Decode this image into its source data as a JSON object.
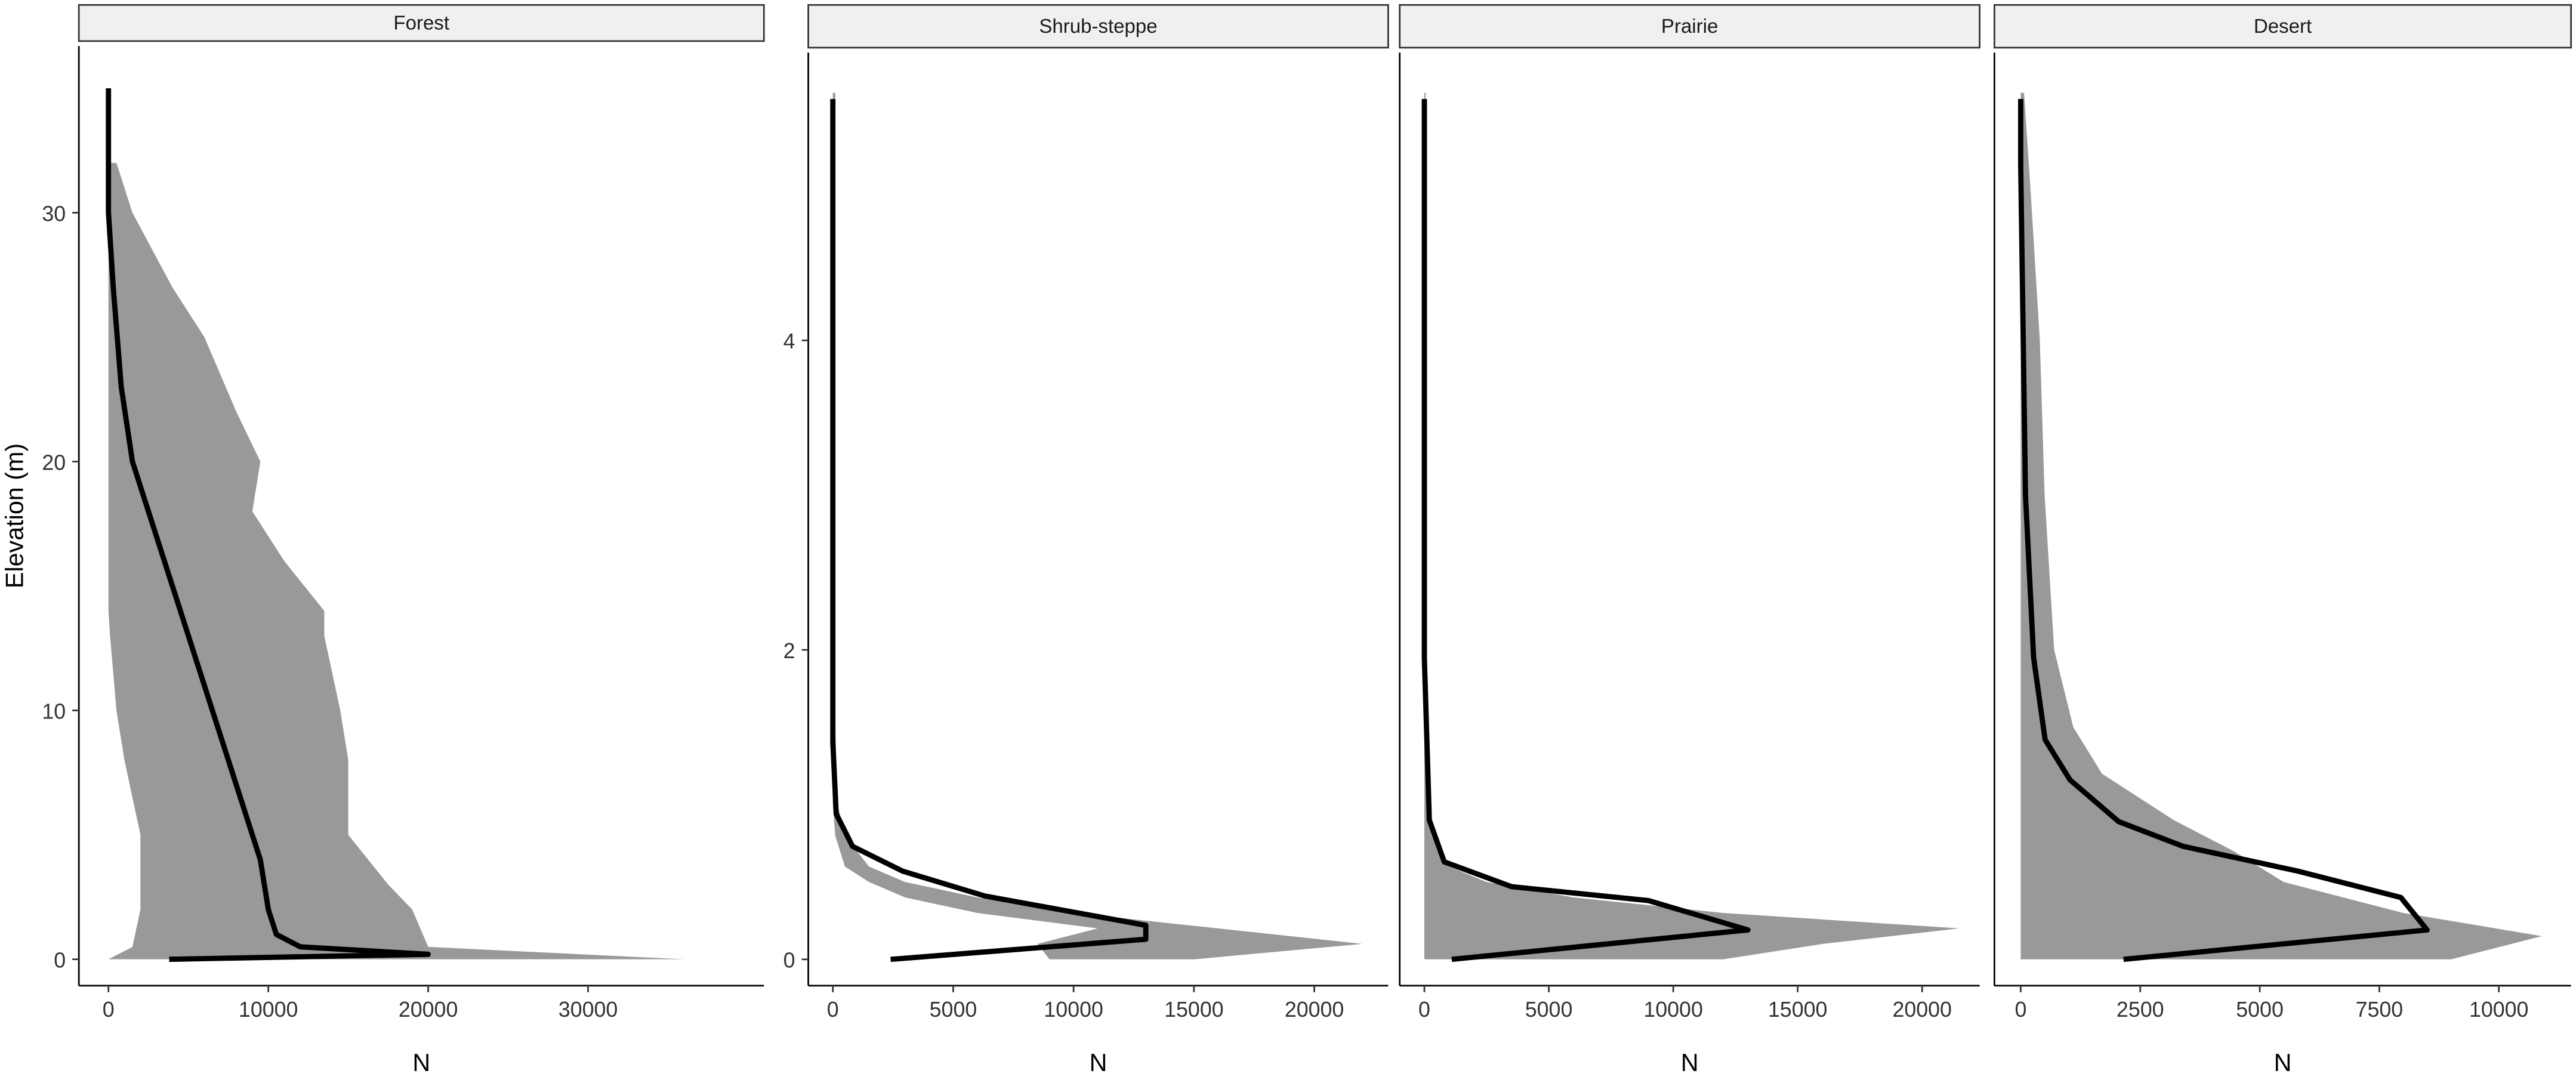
{
  "chart_data": [
    {
      "type": "line",
      "strip": "Forest",
      "xlabel": "N",
      "ylabel": "Elevation (m)",
      "xlim": [
        -1850,
        41000
      ],
      "ylim": [
        -1.06,
        36.7
      ],
      "xticks": [
        0,
        10000,
        20000,
        30000
      ],
      "yticks": [
        0,
        10,
        20,
        30
      ],
      "band": {
        "color": "#999999",
        "y": [
          0,
          0.5,
          2,
          3,
          5,
          8,
          10,
          13,
          14,
          16,
          18,
          20,
          22,
          25,
          27,
          30,
          32
        ],
        "x_lower": [
          0,
          1500,
          2000,
          2000,
          2000,
          1000,
          500,
          100,
          0,
          0,
          0,
          0,
          0,
          0,
          0,
          0,
          0
        ],
        "x_upper": [
          36000,
          20000,
          19000,
          17500,
          15000,
          15000,
          14500,
          13500,
          13500,
          11000,
          9000,
          9500,
          8000,
          6000,
          4000,
          1500,
          500
        ]
      },
      "line": {
        "color": "#000000",
        "x": [
          3800,
          20000,
          12000,
          10500,
          10000,
          9500,
          9000,
          8500,
          7500,
          6500,
          5500,
          4500,
          3500,
          2500,
          1500,
          800,
          300,
          0,
          0
        ],
        "y": [
          0,
          0.2,
          0.5,
          1,
          2,
          4,
          5,
          6,
          8,
          10,
          12,
          14,
          16,
          18,
          20,
          23,
          27,
          30,
          35
        ]
      }
    },
    {
      "type": "line",
      "strip": "Shrub-steppe",
      "xlabel": "N",
      "xlim": [
        -1020,
        23070
      ],
      "ylim": [
        -0.17,
        5.86
      ],
      "xticks": [
        0,
        5000,
        10000,
        15000,
        20000
      ],
      "yticks": [
        0,
        2,
        4
      ],
      "band": {
        "color": "#999999",
        "y": [
          0,
          0.1,
          0.2,
          0.3,
          0.4,
          0.5,
          0.6,
          0.8,
          1.0,
          1.5,
          5.6
        ],
        "x_lower": [
          9000,
          8500,
          11000,
          6000,
          3000,
          1500,
          500,
          100,
          0,
          0,
          0
        ],
        "x_upper": [
          15000,
          22000,
          16000,
          10000,
          6000,
          3000,
          1500,
          500,
          200,
          100,
          100
        ]
      },
      "line": {
        "color": "#000000",
        "x": [
          2400,
          13000,
          13000,
          6300,
          2900,
          820,
          140,
          0,
          0
        ],
        "y": [
          0,
          0.13,
          0.22,
          0.41,
          0.57,
          0.73,
          0.94,
          1.4,
          5.56
        ]
      }
    },
    {
      "type": "line",
      "strip": "Prairie",
      "xlabel": "N",
      "xlim": [
        -990,
        22310
      ],
      "ylim": [
        -0.17,
        5.86
      ],
      "xticks": [
        0,
        5000,
        10000,
        15000,
        20000
      ],
      "band": {
        "color": "#999999",
        "y": [
          0,
          0.1,
          0.2,
          0.3,
          0.4,
          0.5,
          0.6,
          0.8,
          1.0,
          5.6
        ],
        "x_lower": [
          0,
          0,
          0,
          0,
          0,
          0,
          0,
          0,
          0,
          0
        ],
        "x_upper": [
          12000,
          16000,
          21500,
          12000,
          6000,
          2500,
          1000,
          300,
          100,
          50
        ]
      },
      "line": {
        "color": "#000000",
        "x": [
          1100,
          13000,
          9000,
          3500,
          800,
          200,
          0,
          0
        ],
        "y": [
          0,
          0.19,
          0.38,
          0.47,
          0.63,
          0.9,
          1.95,
          5.56
        ]
      }
    },
    {
      "type": "line",
      "strip": "Desert",
      "xlabel": "N",
      "xlim": [
        -550,
        11510
      ],
      "ylim": [
        -0.17,
        5.86
      ],
      "xticks": [
        0,
        2500,
        5000,
        7500,
        10000
      ],
      "band": {
        "color": "#999999",
        "y": [
          0,
          0.15,
          0.3,
          0.5,
          0.7,
          0.9,
          1.2,
          1.5,
          2,
          3,
          4,
          5,
          5.6
        ],
        "x_lower": [
          0,
          0,
          0,
          0,
          0,
          0,
          0,
          0,
          0,
          0,
          0,
          0,
          0
        ],
        "x_upper": [
          9000,
          10900,
          8000,
          5500,
          4450,
          3200,
          1700,
          1100,
          700,
          500,
          400,
          200,
          70
        ]
      },
      "line": {
        "color": "#000000",
        "x": [
          2150,
          8500,
          7950,
          5800,
          3400,
          2050,
          1030,
          510,
          270,
          100,
          0,
          0
        ],
        "y": [
          0,
          0.19,
          0.4,
          0.57,
          0.73,
          0.89,
          1.16,
          1.42,
          1.95,
          3.0,
          5.13,
          5.56
        ]
      }
    }
  ]
}
